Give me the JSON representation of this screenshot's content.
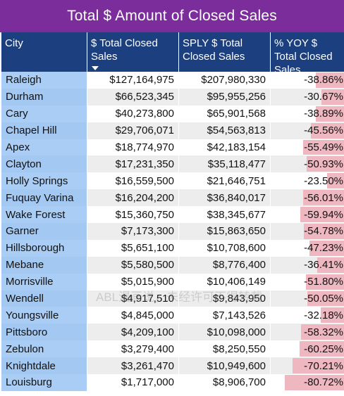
{
  "title": "Total $ Amount of Closed Sales",
  "columns": {
    "city": "City",
    "total": "$ Total Closed Sales",
    "sply": "SPLY $ Total Closed Sales",
    "yoy": "% YOY $ Total Closed Sales"
  },
  "sort_indicator": "sort-descending-icon",
  "colors": {
    "title_bg": "#7b2d9b",
    "header_bg": "#1b3f7f",
    "city_bg": "#a9cdf4",
    "yoy_bar": "#efb7bf"
  },
  "rows": [
    {
      "city": "Raleigh",
      "total": "$127,164,975",
      "sply": "$207,980,330",
      "yoy": "-38.86%",
      "yoy_pct": 38.86
    },
    {
      "city": "Durham",
      "total": "$66,523,345",
      "sply": "$95,955,256",
      "yoy": "-30.67%",
      "yoy_pct": 30.67
    },
    {
      "city": "Cary",
      "total": "$40,273,800",
      "sply": "$65,901,568",
      "yoy": "-38.89%",
      "yoy_pct": 38.89
    },
    {
      "city": "Chapel Hill",
      "total": "$29,706,071",
      "sply": "$54,563,813",
      "yoy": "-45.56%",
      "yoy_pct": 45.56
    },
    {
      "city": "Apex",
      "total": "$18,774,970",
      "sply": "$42,183,154",
      "yoy": "-55.49%",
      "yoy_pct": 55.49
    },
    {
      "city": "Clayton",
      "total": "$17,231,350",
      "sply": "$35,118,477",
      "yoy": "-50.93%",
      "yoy_pct": 50.93
    },
    {
      "city": "Holly Springs",
      "total": "$16,559,500",
      "sply": "$21,646,751",
      "yoy": "-23.50%",
      "yoy_pct": 23.5
    },
    {
      "city": "Fuquay Varina",
      "total": "$16,204,200",
      "sply": "$36,840,017",
      "yoy": "-56.01%",
      "yoy_pct": 56.01
    },
    {
      "city": "Wake Forest",
      "total": "$15,360,750",
      "sply": "$38,345,677",
      "yoy": "-59.94%",
      "yoy_pct": 59.94
    },
    {
      "city": "Garner",
      "total": "$7,173,300",
      "sply": "$15,863,650",
      "yoy": "-54.78%",
      "yoy_pct": 54.78
    },
    {
      "city": "Hillsborough",
      "total": "$5,651,100",
      "sply": "$10,708,600",
      "yoy": "-47.23%",
      "yoy_pct": 47.23
    },
    {
      "city": "Mebane",
      "total": "$5,580,500",
      "sply": "$8,776,400",
      "yoy": "-36.41%",
      "yoy_pct": 36.41
    },
    {
      "city": "Morrisville",
      "total": "$5,015,900",
      "sply": "$10,406,149",
      "yoy": "-51.80%",
      "yoy_pct": 51.8
    },
    {
      "city": "Wendell",
      "total": "$4,917,510",
      "sply": "$9,843,950",
      "yoy": "-50.05%",
      "yoy_pct": 50.05
    },
    {
      "city": "Youngsville",
      "total": "$4,845,000",
      "sply": "$7,143,526",
      "yoy": "-32.18%",
      "yoy_pct": 32.18
    },
    {
      "city": "Pittsboro",
      "total": "$4,209,100",
      "sply": "$10,098,000",
      "yoy": "-58.32%",
      "yoy_pct": 58.32
    },
    {
      "city": "Zebulon",
      "total": "$3,279,400",
      "sply": "$8,250,550",
      "yoy": "-60.25%",
      "yoy_pct": 60.25
    },
    {
      "city": "Knightdale",
      "total": "$3,261,470",
      "sply": "$10,949,600",
      "yoy": "-70.21%",
      "yoy_pct": 70.21
    },
    {
      "city": "Louisburg",
      "total": "$1,717,000",
      "sply": "$8,906,700",
      "yoy": "-80.72%",
      "yoy_pct": 80.72
    }
  ],
  "watermark": "ABL漫画说，未经许可不得转载"
}
